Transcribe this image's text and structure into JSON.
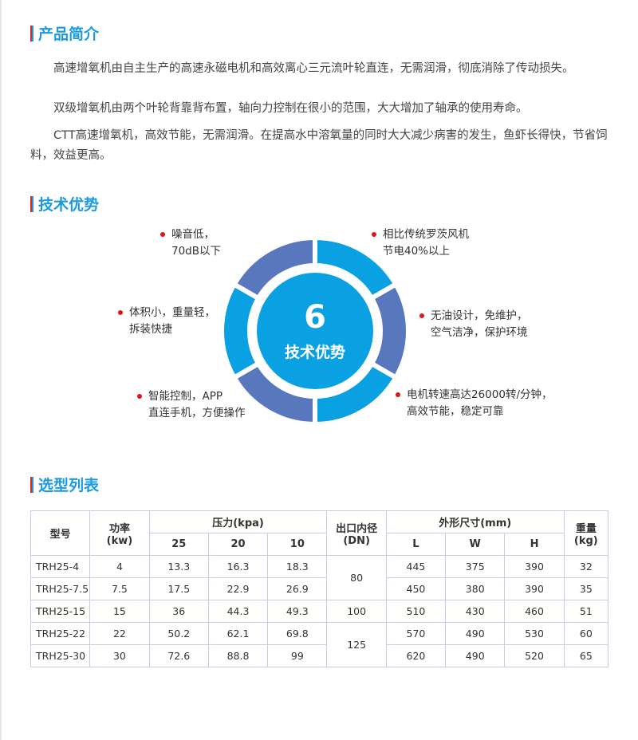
{
  "intro": {
    "title": "产品简介",
    "paragraphs": [
      "高速增氧机由自主生产的高速永磁电机和高效离心三元流叶轮直连，无需润滑，彻底消除了传动损失。",
      "双级增氧机由两个叶轮背靠背布置，轴向力控制在很小的范围，大大增加了轴承的使用寿命。",
      "CTT高速增氧机，高效节能，无需润滑。在提高水中溶氧量的同时大大减少病害的发生，鱼虾长得快，节省饲料，效益更高。"
    ]
  },
  "advantages": {
    "title": "技术优势",
    "center_number": "6",
    "center_label": "技术优势",
    "colors": {
      "light": "#0aa1e3",
      "dark": "#5877bd"
    },
    "features": [
      {
        "line1": "噪音低，",
        "line2": "70dB以下"
      },
      {
        "line1": "相比传统罗茨风机",
        "line2": "节电40%以上"
      },
      {
        "line1": "体积小，重量轻，",
        "line2": "拆装快捷"
      },
      {
        "line1": "无油设计，免维护，",
        "line2": "空气洁净，保护环境"
      },
      {
        "line1": "智能控制，APP",
        "line2": "直连手机，方便操作"
      },
      {
        "line1": "电机转速高达26000转/分钟，",
        "line2": "高效节能，稳定可靠"
      }
    ]
  },
  "selection": {
    "title": "选型列表",
    "headers": {
      "model": "型号",
      "power": "功率",
      "power_unit": "(kw)",
      "pressure": "压力(kpa)",
      "p25": "25",
      "p20": "20",
      "p10": "10",
      "outlet": "出口内径",
      "outlet_unit": "(DN)",
      "dims": "外形尺寸(mm)",
      "L": "L",
      "W": "W",
      "H": "H",
      "weight": "重量",
      "weight_unit": "(kg)"
    },
    "rows": [
      [
        "TRH25-4",
        "4",
        "13.3",
        "16.3",
        "18.3",
        "445",
        "375",
        "390",
        "32"
      ],
      [
        "TRH25-7.5",
        "7.5",
        "17.5",
        "22.9",
        "26.9",
        "450",
        "380",
        "390",
        "35"
      ],
      [
        "TRH25-15",
        "15",
        "36",
        "44.3",
        "49.3",
        "510",
        "430",
        "460",
        "51"
      ],
      [
        "TRH25-22",
        "22",
        "50.2",
        "62.1",
        "69.8",
        "570",
        "490",
        "530",
        "60"
      ],
      [
        "TRH25-30",
        "30",
        "72.6",
        "88.8",
        "99",
        "620",
        "490",
        "520",
        "65"
      ]
    ],
    "outlets": [
      "80",
      "100",
      "125"
    ]
  }
}
